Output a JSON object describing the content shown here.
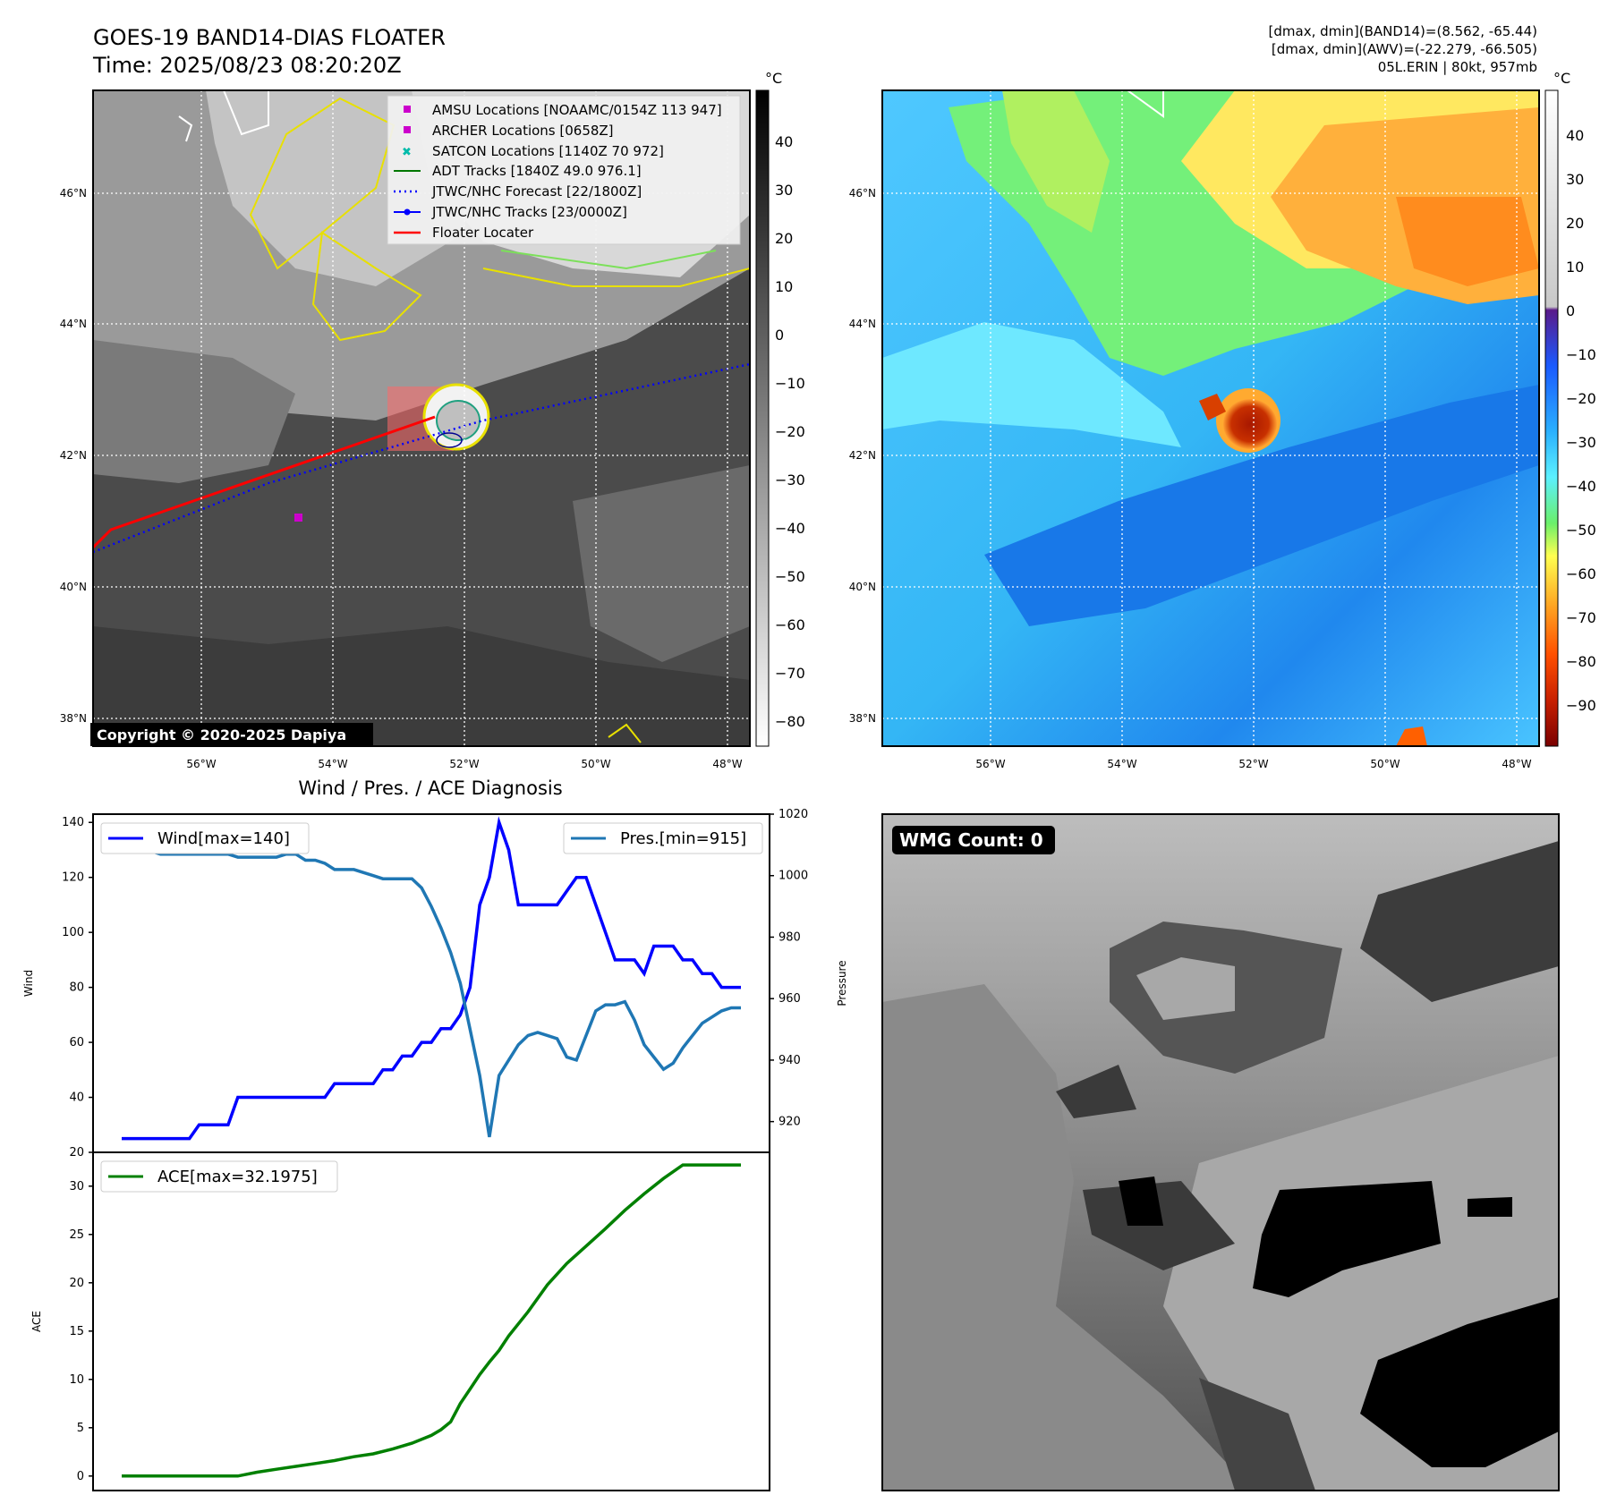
{
  "header": {
    "title": "GOES-19 BAND14-DIAS FLOATER",
    "time": "Time: 2025/08/23 08:20:20Z",
    "dmax_band14": "[dmax, dmin](BAND14)=(8.562, -65.44)",
    "dmax_awv": "[dmax, dmin](AWV)=(-22.279, -66.505)",
    "storm": "05L.ERIN | 80kt, 957mb"
  },
  "map": {
    "lat_labels": [
      "46°N",
      "44°N",
      "42°N",
      "40°N",
      "38°N"
    ],
    "lon_labels": [
      "56°W",
      "54°W",
      "52°W",
      "50°W",
      "48°W"
    ],
    "copyright": "Copyright © 2020-2025 Dapiya",
    "legend": [
      {
        "label": "AMSU Locations [NOAAMC/0154Z 113 947]",
        "color": "#cc00cc",
        "marker": "square"
      },
      {
        "label": "ARCHER Locations [0658Z]",
        "color": "#cc00cc",
        "marker": "square"
      },
      {
        "label": "SATCON Locations [1140Z 70 972]",
        "color": "#00bbaa",
        "marker": "x"
      },
      {
        "label": "ADT Tracks [1840Z 49.0 976.1]",
        "color": "#007700",
        "marker": "line"
      },
      {
        "label": "JTWC/NHC Forecast [22/1800Z]",
        "color": "#0000ff",
        "marker": "dotted"
      },
      {
        "label": "JTWC/NHC Tracks [23/0000Z]",
        "color": "#0000ff",
        "marker": "line-dot"
      },
      {
        "label": "Floater Locater",
        "color": "#ff0000",
        "marker": "line"
      }
    ]
  },
  "colorbar_left": {
    "unit": "°C",
    "ticks": [
      "40",
      "30",
      "20",
      "10",
      "0",
      "−10",
      "−20",
      "−30",
      "−40",
      "−50",
      "−60",
      "−70",
      "−80"
    ]
  },
  "colorbar_right": {
    "unit": "°C",
    "ticks": [
      "40",
      "30",
      "20",
      "10",
      "0",
      "−10",
      "−20",
      "−30",
      "−40",
      "−50",
      "−60",
      "−70",
      "−80",
      "−90"
    ]
  },
  "wmg": {
    "label": "WMG Count: 0"
  },
  "chart_data": [
    {
      "type": "line",
      "title": "Wind / Pres. / ACE Diagnosis",
      "ylabel": "Wind",
      "y2label": "Pressure",
      "ylim": [
        20,
        143
      ],
      "y2lim": [
        910,
        1020
      ],
      "yticks": [
        20,
        40,
        60,
        80,
        100,
        120,
        140
      ],
      "y2ticks": [
        920,
        940,
        960,
        980,
        1000,
        1020
      ],
      "xlim": [
        0,
        64
      ],
      "series": [
        {
          "name": "Wind[max=140]",
          "color": "#0000ff",
          "x": [
            0,
            1,
            2,
            3,
            4,
            5,
            6,
            7,
            8,
            9,
            10,
            11,
            12,
            13,
            14,
            15,
            16,
            17,
            18,
            19,
            20,
            21,
            22,
            23,
            24,
            25,
            26,
            27,
            28,
            29,
            30,
            31,
            32,
            33,
            34,
            35,
            36,
            37,
            38,
            39,
            40,
            41,
            42,
            43,
            44,
            45,
            46,
            47,
            48,
            49,
            50,
            51,
            52,
            53,
            54,
            55,
            56,
            57,
            58,
            59,
            60,
            61,
            62,
            63,
            64
          ],
          "values": [
            25,
            25,
            25,
            25,
            25,
            25,
            25,
            25,
            30,
            30,
            30,
            30,
            40,
            40,
            40,
            40,
            40,
            40,
            40,
            40,
            40,
            40,
            45,
            45,
            45,
            45,
            45,
            50,
            50,
            55,
            55,
            60,
            60,
            65,
            65,
            70,
            80,
            110,
            120,
            140,
            130,
            110,
            110,
            110,
            110,
            110,
            115,
            120,
            120,
            110,
            100,
            90,
            90,
            90,
            85,
            95,
            95,
            95,
            90,
            90,
            85,
            85,
            80,
            80,
            80
          ]
        },
        {
          "name": "Pres.[min=915]",
          "color": "#1f77b4",
          "axis": "right",
          "x": [
            0,
            1,
            2,
            3,
            4,
            5,
            6,
            7,
            8,
            9,
            10,
            11,
            12,
            13,
            14,
            15,
            16,
            17,
            18,
            19,
            20,
            21,
            22,
            23,
            24,
            25,
            26,
            27,
            28,
            29,
            30,
            31,
            32,
            33,
            34,
            35,
            36,
            37,
            38,
            39,
            40,
            41,
            42,
            43,
            44,
            45,
            46,
            47,
            48,
            49,
            50,
            51,
            52,
            53,
            54,
            55,
            56,
            57,
            58,
            59,
            60,
            61,
            62,
            63,
            64
          ],
          "values": [
            1015,
            1015,
            1009,
            1008,
            1007,
            1007,
            1007,
            1007,
            1007,
            1007,
            1007,
            1007,
            1006,
            1006,
            1006,
            1006,
            1006,
            1007,
            1007,
            1005,
            1005,
            1004,
            1002,
            1002,
            1002,
            1001,
            1000,
            999,
            999,
            999,
            999,
            996,
            990,
            983,
            975,
            965,
            950,
            935,
            915,
            935,
            940,
            945,
            948,
            949,
            948,
            947,
            941,
            940,
            948,
            956,
            958,
            958,
            959,
            953,
            945,
            941,
            937,
            939,
            944,
            948,
            952,
            954,
            956,
            957,
            957
          ]
        }
      ]
    },
    {
      "type": "line",
      "ylabel": "ACE",
      "ylim": [
        -1.5,
        33.5
      ],
      "yticks": [
        0,
        5,
        10,
        15,
        20,
        25,
        30
      ],
      "xlim": [
        0,
        64
      ],
      "series": [
        {
          "name": "ACE[max=32.1975]",
          "color": "#008000",
          "x": [
            0,
            2,
            4,
            6,
            8,
            10,
            12,
            14,
            16,
            18,
            20,
            22,
            24,
            26,
            28,
            30,
            31,
            32,
            33,
            34,
            35,
            36,
            37,
            38,
            39,
            40,
            42,
            44,
            46,
            48,
            50,
            52,
            54,
            56,
            58,
            60,
            62,
            63,
            64
          ],
          "values": [
            0,
            0,
            0,
            0,
            0,
            0,
            0,
            0.4,
            0.7,
            1.0,
            1.3,
            1.6,
            2.0,
            2.3,
            2.8,
            3.4,
            3.8,
            4.2,
            4.8,
            5.6,
            7.5,
            9.0,
            10.5,
            11.8,
            13.0,
            14.5,
            17.0,
            19.8,
            22.0,
            23.8,
            25.6,
            27.5,
            29.2,
            30.8,
            32.1975,
            32.1975,
            32.1975,
            32.1975,
            32.1975
          ]
        }
      ]
    }
  ]
}
